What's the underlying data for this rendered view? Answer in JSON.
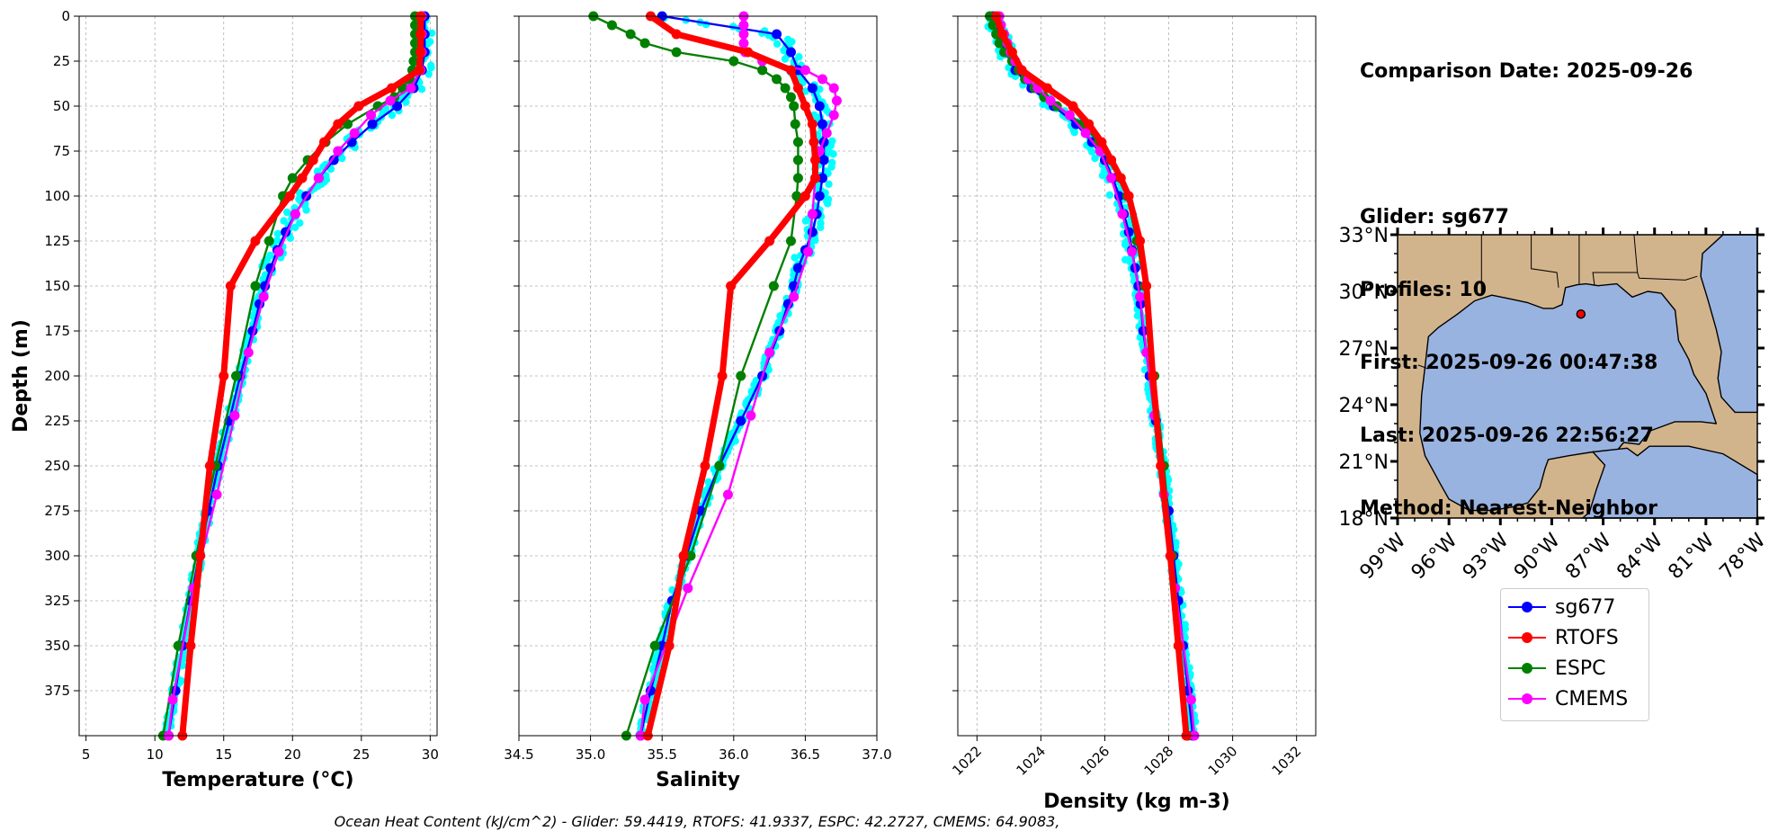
{
  "info": {
    "comparison_date": "Comparison Date: 2025-09-26",
    "glider": "Glider: sg677",
    "profiles": "Profiles: 10",
    "first": "First: 2025-09-26 00:47:38",
    "last": "Last: 2025-09-26 22:56:27",
    "method": "Method: Nearest-Neighbor"
  },
  "footer": "Ocean Heat Content (kJ/cm^2) - Glider: 59.4419,  RTOFS: 41.9337,  ESPC: 42.2727,  CMEMS: 64.9083,",
  "legend": [
    {
      "label": "sg677",
      "color": "#0000ff"
    },
    {
      "label": "RTOFS",
      "color": "#ff0000"
    },
    {
      "label": "ESPC",
      "color": "#008000"
    },
    {
      "label": "CMEMS",
      "color": "#ff00ff"
    }
  ],
  "colors": {
    "raw_glider": "#00ffff",
    "land": "#d2b48c",
    "ocean": "#99b3e0",
    "grid": "#b0b0b0"
  },
  "map": {
    "lon_ticks": [
      "99°W",
      "96°W",
      "93°W",
      "90°W",
      "87°W",
      "84°W",
      "81°W",
      "78°W"
    ],
    "lat_ticks": [
      "33°N",
      "30°N",
      "27°N",
      "24°N",
      "21°N",
      "18°N"
    ],
    "lon_range": [
      -99,
      -78
    ],
    "lat_range": [
      18,
      33
    ],
    "glider_location": {
      "lon": -88.3,
      "lat": 28.8
    }
  },
  "chart_data": [
    {
      "type": "line",
      "xlabel": "Temperature (°C)",
      "ylabel": "Depth (m)",
      "xlim": [
        4.5,
        30.5
      ],
      "ylim": [
        400,
        0
      ],
      "xticks": [
        5,
        10,
        15,
        20,
        25,
        30
      ],
      "yticks": [
        0,
        25,
        50,
        75,
        100,
        125,
        150,
        175,
        200,
        225,
        250,
        275,
        300,
        325,
        350,
        375
      ],
      "grid": true,
      "series": [
        {
          "name": "sg677",
          "depth": [
            0,
            10,
            20,
            30,
            40,
            50,
            60,
            70,
            80,
            90,
            100,
            110,
            120,
            130,
            140,
            150,
            160,
            175,
            200,
            225,
            250,
            275,
            300,
            325,
            350,
            375,
            400
          ],
          "values": [
            29.6,
            29.6,
            29.6,
            29.4,
            28.8,
            27.6,
            25.8,
            24.3,
            23.0,
            21.9,
            21.0,
            20.2,
            19.5,
            18.9,
            18.4,
            18.0,
            17.6,
            17.1,
            16.2,
            15.4,
            14.6,
            13.9,
            13.2,
            12.6,
            12.0,
            11.5,
            11.0
          ]
        },
        {
          "name": "RTOFS",
          "depth": [
            0,
            10,
            20,
            30,
            40,
            50,
            60,
            70,
            80,
            90,
            100,
            125,
            150,
            200,
            250,
            300,
            350,
            400
          ],
          "values": [
            29.3,
            29.3,
            29.3,
            29.2,
            27.2,
            24.8,
            23.3,
            22.3,
            21.5,
            20.7,
            19.8,
            17.3,
            15.5,
            15.0,
            14.0,
            13.3,
            12.6,
            12.0
          ]
        },
        {
          "name": "ESPC",
          "depth": [
            0,
            5,
            10,
            15,
            20,
            25,
            30,
            35,
            40,
            45,
            50,
            60,
            70,
            80,
            90,
            100,
            125,
            150,
            200,
            250,
            300,
            350,
            400
          ],
          "values": [
            28.9,
            28.9,
            28.9,
            28.9,
            28.9,
            28.8,
            28.7,
            28.5,
            28.0,
            27.4,
            26.2,
            24.0,
            22.4,
            21.1,
            20.0,
            19.3,
            18.3,
            17.3,
            15.9,
            14.4,
            13.0,
            11.7,
            10.6
          ]
        },
        {
          "name": "CMEMS",
          "depth": [
            0,
            10,
            20,
            30,
            40,
            47,
            55,
            65,
            75,
            90,
            110,
            131,
            156,
            187,
            222,
            266,
            318,
            380,
            400
          ],
          "values": [
            29.4,
            29.4,
            29.4,
            29.3,
            28.6,
            27.1,
            25.7,
            24.5,
            23.3,
            21.9,
            20.2,
            19.0,
            17.9,
            16.8,
            15.8,
            14.5,
            12.8,
            11.3,
            11.0
          ]
        }
      ]
    },
    {
      "type": "line",
      "xlabel": "Salinity",
      "ylabel": "",
      "xlim": [
        34.5,
        37.0
      ],
      "ylim": [
        400,
        0
      ],
      "xticks": [
        34.5,
        35.0,
        35.5,
        36.0,
        36.5,
        37.0
      ],
      "grid": true,
      "series": [
        {
          "name": "sg677",
          "depth": [
            0,
            10,
            20,
            30,
            40,
            50,
            60,
            70,
            80,
            90,
            100,
            110,
            120,
            130,
            140,
            150,
            160,
            175,
            200,
            225,
            250,
            275,
            300,
            325,
            350,
            375,
            400
          ],
          "values": [
            35.5,
            36.3,
            36.4,
            36.45,
            36.55,
            36.6,
            36.62,
            36.63,
            36.63,
            36.62,
            36.6,
            36.58,
            36.55,
            36.5,
            36.45,
            36.42,
            36.38,
            36.32,
            36.2,
            36.05,
            35.9,
            35.77,
            35.67,
            35.57,
            35.5,
            35.42,
            35.35
          ]
        },
        {
          "name": "RTOFS",
          "depth": [
            0,
            10,
            20,
            30,
            40,
            50,
            60,
            70,
            80,
            90,
            100,
            125,
            150,
            200,
            250,
            300,
            350,
            400
          ],
          "values": [
            35.42,
            35.6,
            36.1,
            36.4,
            36.45,
            36.5,
            36.55,
            36.56,
            36.57,
            36.57,
            36.5,
            36.25,
            35.98,
            35.92,
            35.8,
            35.65,
            35.55,
            35.4
          ]
        },
        {
          "name": "ESPC",
          "depth": [
            0,
            5,
            10,
            15,
            20,
            25,
            30,
            35,
            40,
            45,
            50,
            60,
            70,
            80,
            90,
            100,
            125,
            150,
            200,
            250,
            300,
            350,
            400
          ],
          "values": [
            35.02,
            35.15,
            35.28,
            35.38,
            35.6,
            36.0,
            36.2,
            36.3,
            36.36,
            36.4,
            36.42,
            36.43,
            36.45,
            36.45,
            36.45,
            36.44,
            36.4,
            36.28,
            36.05,
            35.9,
            35.7,
            35.45,
            35.25
          ]
        },
        {
          "name": "CMEMS",
          "depth": [
            0,
            5,
            10,
            15,
            20,
            25,
            30,
            35,
            40,
            47,
            55,
            65,
            75,
            90,
            110,
            131,
            156,
            187,
            222,
            266,
            318,
            380,
            400
          ],
          "values": [
            36.07,
            36.07,
            36.07,
            36.07,
            36.08,
            36.2,
            36.5,
            36.62,
            36.7,
            36.72,
            36.7,
            36.65,
            36.6,
            36.57,
            36.55,
            36.52,
            36.42,
            36.25,
            36.12,
            35.96,
            35.68,
            35.38,
            35.35
          ]
        }
      ]
    },
    {
      "type": "line",
      "xlabel": "Density (kg m-3)",
      "ylabel": "",
      "xlim": [
        1021.4,
        1032.6
      ],
      "ylim": [
        400,
        0
      ],
      "xticks": [
        1022,
        1024,
        1026,
        1028,
        1030,
        1032
      ],
      "grid": true,
      "series": [
        {
          "name": "sg677",
          "depth": [
            0,
            10,
            20,
            30,
            40,
            50,
            60,
            70,
            80,
            90,
            100,
            110,
            120,
            130,
            140,
            150,
            160,
            175,
            200,
            225,
            250,
            275,
            300,
            325,
            350,
            375,
            400
          ],
          "values": [
            1022.5,
            1022.7,
            1022.9,
            1023.2,
            1023.7,
            1024.4,
            1025.1,
            1025.6,
            1026.0,
            1026.25,
            1026.45,
            1026.6,
            1026.75,
            1026.85,
            1026.95,
            1027.05,
            1027.12,
            1027.2,
            1027.4,
            1027.6,
            1027.8,
            1028.0,
            1028.15,
            1028.3,
            1028.45,
            1028.6,
            1028.75
          ]
        },
        {
          "name": "RTOFS",
          "depth": [
            0,
            10,
            20,
            30,
            40,
            50,
            60,
            70,
            80,
            90,
            100,
            125,
            150,
            200,
            250,
            300,
            350,
            400
          ],
          "values": [
            1022.6,
            1022.8,
            1023.1,
            1023.4,
            1024.2,
            1025.0,
            1025.5,
            1025.9,
            1026.2,
            1026.5,
            1026.75,
            1027.1,
            1027.3,
            1027.5,
            1027.75,
            1028.05,
            1028.3,
            1028.55
          ]
        },
        {
          "name": "ESPC",
          "depth": [
            0,
            5,
            10,
            15,
            20,
            25,
            30,
            35,
            40,
            45,
            50,
            60,
            70,
            80,
            90,
            100,
            125,
            150,
            200,
            250,
            300,
            350,
            400
          ],
          "values": [
            1022.4,
            1022.5,
            1022.6,
            1022.7,
            1022.85,
            1023.1,
            1023.3,
            1023.5,
            1023.8,
            1024.1,
            1024.5,
            1025.3,
            1025.8,
            1026.2,
            1026.5,
            1026.7,
            1027.0,
            1027.25,
            1027.55,
            1027.85,
            1028.1,
            1028.35,
            1028.6
          ]
        },
        {
          "name": "CMEMS",
          "depth": [
            0,
            5,
            10,
            15,
            20,
            25,
            30,
            35,
            40,
            47,
            55,
            65,
            75,
            90,
            110,
            131,
            156,
            187,
            222,
            266,
            318,
            380,
            400
          ],
          "values": [
            1022.7,
            1022.75,
            1022.85,
            1022.95,
            1023.05,
            1023.2,
            1023.4,
            1023.6,
            1023.9,
            1024.3,
            1024.9,
            1025.4,
            1025.85,
            1026.2,
            1026.55,
            1026.85,
            1027.1,
            1027.3,
            1027.55,
            1027.85,
            1028.2,
            1028.7,
            1028.8
          ]
        }
      ]
    }
  ]
}
